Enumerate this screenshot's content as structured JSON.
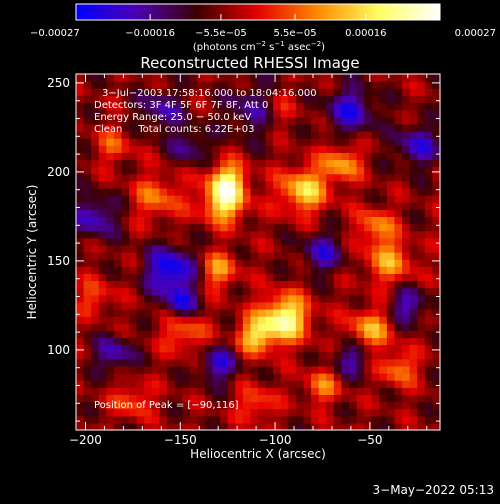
{
  "chart_data": {
    "type": "heatmap",
    "title": "Reconstructed RHESSI Image",
    "xlabel": "Heliocentric X (arcsec)",
    "ylabel": "Heliocentric Y (arcsec)",
    "xlim": [
      -205,
      -13
    ],
    "ylim": [
      55,
      255
    ],
    "xticks": [
      -200,
      -150,
      -100,
      -50
    ],
    "xtick_labels": [
      "−200",
      "−150",
      "−100",
      "−50"
    ],
    "yticks": [
      100,
      150,
      200,
      250
    ],
    "ytick_labels": [
      "100",
      "150",
      "200",
      "250"
    ],
    "colorbar": {
      "min": -0.00027,
      "max": 0.00027,
      "ticks": [
        -0.00027,
        -0.00016,
        -5.5e-05,
        5.5e-05,
        0.00016,
        0.00027
      ],
      "tick_labels": [
        "−0.00027",
        "−0.00016",
        "−5.5e−05",
        "5.5e−05",
        "0.00016",
        "0.00027"
      ],
      "units_prefix": "(photons cm",
      "units_exp1": "−2",
      "units_mid": " s",
      "units_exp2": "−1",
      "units_mid2": " asec",
      "units_exp3": "−2",
      "units_suffix": ")",
      "colors": [
        "#0000ff",
        "#4b00b4",
        "#3c0000",
        "#e60000",
        "#ff8c00",
        "#ffff64",
        "#ffffff"
      ]
    },
    "annotations": [
      "3−Jul−2003 17:58:16.000 to 18:04:16.000",
      "Detectors: 3F 4F 5F 6F 7F 8F, Att 0",
      "Energy Range: 25.0 − 50.0 keV",
      "Clean     Total counts: 6.22E+03"
    ],
    "peak_label": "Position of Peak = [−90,116]",
    "peak": [
      -90,
      116
    ],
    "sources": [
      {
        "x": -95,
        "y": 118,
        "amp": 1.0,
        "r": 9
      },
      {
        "x": -110,
        "y": 108,
        "amp": 0.7,
        "r": 7
      },
      {
        "x": -127,
        "y": 183,
        "amp": 0.85,
        "r": 8
      },
      {
        "x": -125,
        "y": 196,
        "amp": 0.75,
        "r": 7
      },
      {
        "x": -85,
        "y": 190,
        "amp": 0.75,
        "r": 9
      },
      {
        "x": -65,
        "y": 205,
        "amp": 0.6,
        "r": 7
      },
      {
        "x": -162,
        "y": 186,
        "amp": 0.45,
        "r": 9
      },
      {
        "x": -185,
        "y": 215,
        "amp": 0.35,
        "r": 7
      },
      {
        "x": -130,
        "y": 145,
        "amp": 0.55,
        "r": 7
      },
      {
        "x": -148,
        "y": 110,
        "amp": 0.45,
        "r": 8
      },
      {
        "x": -40,
        "y": 150,
        "amp": 0.55,
        "r": 9
      },
      {
        "x": -47,
        "y": 170,
        "amp": 0.5,
        "r": 7
      },
      {
        "x": -50,
        "y": 112,
        "amp": 0.6,
        "r": 8
      },
      {
        "x": -35,
        "y": 90,
        "amp": 0.5,
        "r": 7
      },
      {
        "x": -75,
        "y": 80,
        "amp": 0.45,
        "r": 7
      },
      {
        "x": -110,
        "y": 70,
        "amp": 0.4,
        "r": 7
      },
      {
        "x": -175,
        "y": 72,
        "amp": 0.4,
        "r": 7
      },
      {
        "x": -100,
        "y": 235,
        "amp": 0.35,
        "r": 8
      },
      {
        "x": -195,
        "y": 130,
        "amp": 0.35,
        "r": 7
      },
      {
        "x": -155,
        "y": 145,
        "amp": -0.8,
        "r": 9
      },
      {
        "x": -150,
        "y": 127,
        "amp": -0.6,
        "r": 6
      },
      {
        "x": -110,
        "y": 235,
        "amp": -0.5,
        "r": 10
      },
      {
        "x": -195,
        "y": 175,
        "amp": -0.55,
        "r": 8
      },
      {
        "x": -60,
        "y": 235,
        "amp": -0.6,
        "r": 9
      },
      {
        "x": -25,
        "y": 215,
        "amp": -0.55,
        "r": 8
      },
      {
        "x": -30,
        "y": 125,
        "amp": -0.5,
        "r": 7
      },
      {
        "x": -75,
        "y": 155,
        "amp": -0.5,
        "r": 8
      },
      {
        "x": -130,
        "y": 92,
        "amp": -0.55,
        "r": 7
      },
      {
        "x": -185,
        "y": 98,
        "amp": -0.5,
        "r": 7
      },
      {
        "x": -60,
        "y": 95,
        "amp": -0.45,
        "r": 7
      },
      {
        "x": -160,
        "y": 235,
        "amp": -0.45,
        "r": 8
      },
      {
        "x": -145,
        "y": 215,
        "amp": -0.4,
        "r": 7
      }
    ]
  },
  "footer": {
    "date": "3−May−2022 05:13"
  }
}
